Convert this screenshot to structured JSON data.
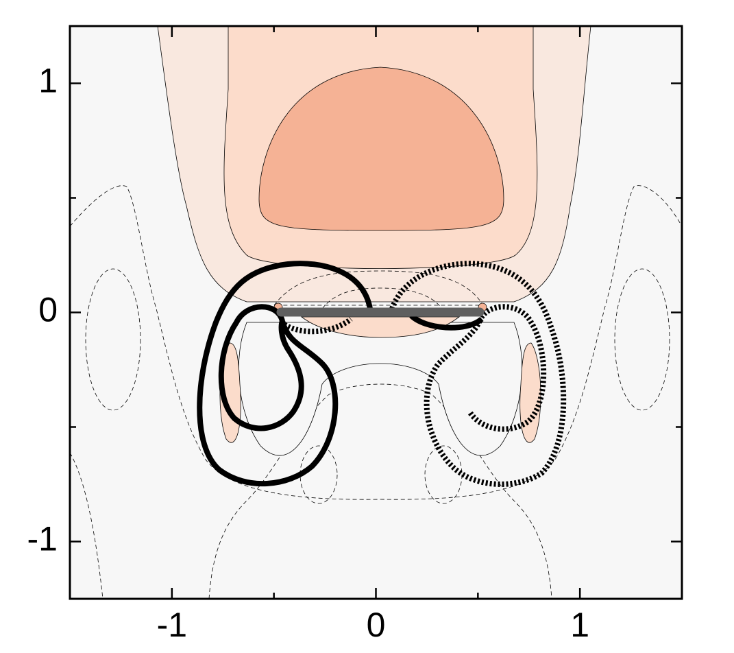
{
  "chart_data": {
    "type": "contour",
    "xlim": [
      -1.5,
      1.5
    ],
    "ylim": [
      -1.25,
      1.25
    ],
    "xticks": [
      -1,
      0,
      1
    ],
    "yticks": [
      -1,
      0,
      1
    ],
    "xminorticks": [
      -0.5,
      0.5
    ],
    "yminorticks": [
      -0.5,
      0.5
    ]
  }
}
